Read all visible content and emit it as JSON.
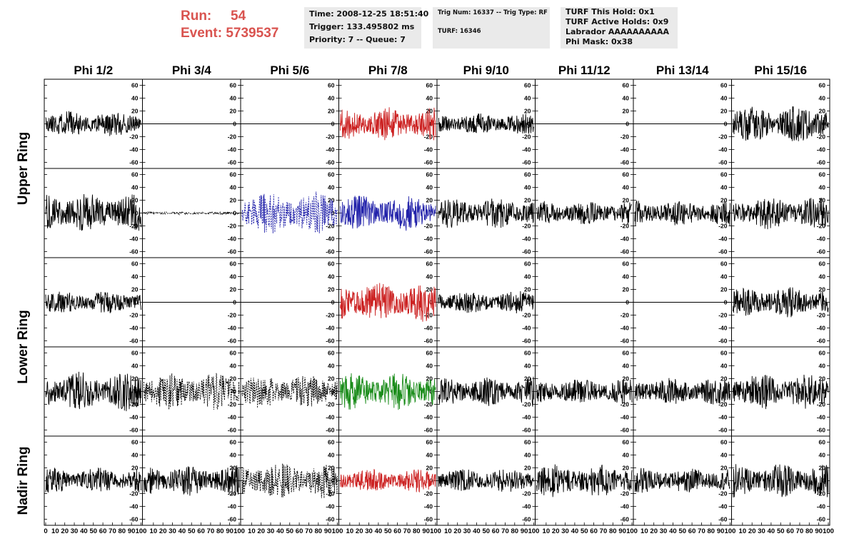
{
  "header": {
    "run_label": "Run:",
    "run_value": "54",
    "event_label": "Event:",
    "event_value": "5739537"
  },
  "info_box_1": {
    "line1": "Time: 2008-12-25 18:51:40",
    "line2": "Trigger: 133.495802 ms",
    "line3": "Priority: 7 -- Queue: 7"
  },
  "info_box_2": {
    "line1": "Trig Num: 16337 -- Trig Type: RF",
    "line2": "TURF: 16346"
  },
  "info_box_3": {
    "line1": "TURF This Hold: 0x1",
    "line2": "TURF Active Holds: 0x9",
    "line3": "Labrador AAAAAAAAAA",
    "line4": "Phi Mask: 0x38"
  },
  "colors": {
    "header_red": "#d9534f",
    "trace_black": "#000000",
    "trace_red": "#cc2222",
    "trace_blue": "#2222aa",
    "trace_green": "#1a8c1a",
    "panel_border": "#000000"
  },
  "chart_data": {
    "type": "line",
    "columns": [
      "Phi 1/2",
      "Phi 3/4",
      "Phi 5/6",
      "Phi 7/8",
      "Phi 9/10",
      "Phi 11/12",
      "Phi 13/14",
      "Phi 15/16"
    ],
    "ring_labels": [
      {
        "name": "Upper Ring",
        "rows": [
          0,
          1
        ]
      },
      {
        "name": "Lower Ring",
        "rows": [
          2,
          3
        ]
      },
      {
        "name": "Nadir Ring",
        "rows": [
          4
        ]
      }
    ],
    "ylim": [
      -60,
      60
    ],
    "y_ticks": [
      -60,
      -40,
      -20,
      0,
      20,
      40,
      60
    ],
    "xlim": [
      0,
      100
    ],
    "x_ticks": [
      0,
      10,
      20,
      30,
      40,
      50,
      60,
      70,
      80,
      90,
      100
    ],
    "x_tick_labels_first_panel": [
      "0",
      "10",
      "20",
      "30",
      "40",
      "50",
      "60",
      "70",
      "80",
      "90",
      "100"
    ],
    "x_tick_labels_other_panels": [
      "10",
      "20",
      "30",
      "40",
      "50",
      "60",
      "70",
      "80",
      "90",
      "100"
    ],
    "panels": [
      [
        {
          "style": "solid",
          "color": "#000000",
          "amplitude": 17,
          "seed": 11
        },
        {
          "style": "flat",
          "color": "#000000",
          "amplitude": 0,
          "seed": 12
        },
        {
          "style": "flat",
          "color": "#000000",
          "amplitude": 0,
          "seed": 13
        },
        {
          "style": "solid",
          "color": "#cc2222",
          "amplitude": 22,
          "seed": 14
        },
        {
          "style": "solid",
          "color": "#000000",
          "amplitude": 14,
          "seed": 15
        },
        {
          "style": "flat",
          "color": "#000000",
          "amplitude": 0,
          "seed": 16
        },
        {
          "style": "flat",
          "color": "#000000",
          "amplitude": 0,
          "seed": 17
        },
        {
          "style": "solid",
          "color": "#000000",
          "amplitude": 24,
          "seed": 18
        }
      ],
      [
        {
          "style": "solid",
          "color": "#000000",
          "amplitude": 26,
          "seed": 21
        },
        {
          "style": "dotted",
          "color": "#000000",
          "amplitude": 2,
          "seed": 22
        },
        {
          "style": "dotted",
          "color": "#2222aa",
          "amplitude": 28,
          "seed": 23
        },
        {
          "style": "solid",
          "color": "#2222aa",
          "amplitude": 24,
          "seed": 24
        },
        {
          "style": "solid",
          "color": "#000000",
          "amplitude": 20,
          "seed": 25
        },
        {
          "style": "solid",
          "color": "#000000",
          "amplitude": 16,
          "seed": 26
        },
        {
          "style": "solid",
          "color": "#000000",
          "amplitude": 17,
          "seed": 27
        },
        {
          "style": "solid",
          "color": "#000000",
          "amplitude": 22,
          "seed": 28
        }
      ],
      [
        {
          "style": "solid",
          "color": "#000000",
          "amplitude": 15,
          "seed": 31
        },
        {
          "style": "flat",
          "color": "#000000",
          "amplitude": 0,
          "seed": 32
        },
        {
          "style": "flat",
          "color": "#000000",
          "amplitude": 0,
          "seed": 33
        },
        {
          "style": "solid",
          "color": "#cc2222",
          "amplitude": 26,
          "seed": 34
        },
        {
          "style": "solid",
          "color": "#000000",
          "amplitude": 15,
          "seed": 35
        },
        {
          "style": "flat",
          "color": "#000000",
          "amplitude": 0,
          "seed": 36
        },
        {
          "style": "flat",
          "color": "#000000",
          "amplitude": 0,
          "seed": 37
        },
        {
          "style": "solid",
          "color": "#000000",
          "amplitude": 20,
          "seed": 38
        }
      ],
      [
        {
          "style": "solid",
          "color": "#000000",
          "amplitude": 26,
          "seed": 41
        },
        {
          "style": "dotted",
          "color": "#000000",
          "amplitude": 24,
          "seed": 42
        },
        {
          "style": "dotted",
          "color": "#000000",
          "amplitude": 22,
          "seed": 43
        },
        {
          "style": "solid",
          "color": "#1a8c1a",
          "amplitude": 24,
          "seed": 44
        },
        {
          "style": "solid",
          "color": "#000000",
          "amplitude": 20,
          "seed": 45
        },
        {
          "style": "solid",
          "color": "#000000",
          "amplitude": 17,
          "seed": 46
        },
        {
          "style": "solid",
          "color": "#000000",
          "amplitude": 18,
          "seed": 47
        },
        {
          "style": "solid",
          "color": "#000000",
          "amplitude": 24,
          "seed": 48
        }
      ],
      [
        {
          "style": "solid",
          "color": "#000000",
          "amplitude": 17,
          "seed": 51
        },
        {
          "style": "solid",
          "color": "#000000",
          "amplitude": 20,
          "seed": 52
        },
        {
          "style": "dotted",
          "color": "#000000",
          "amplitude": 24,
          "seed": 53
        },
        {
          "style": "solid",
          "color": "#cc2222",
          "amplitude": 15,
          "seed": 54
        },
        {
          "style": "solid",
          "color": "#000000",
          "amplitude": 16,
          "seed": 55
        },
        {
          "style": "solid",
          "color": "#000000",
          "amplitude": 22,
          "seed": 56
        },
        {
          "style": "solid",
          "color": "#000000",
          "amplitude": 17,
          "seed": 57
        },
        {
          "style": "solid",
          "color": "#000000",
          "amplitude": 22,
          "seed": 58
        }
      ]
    ]
  }
}
